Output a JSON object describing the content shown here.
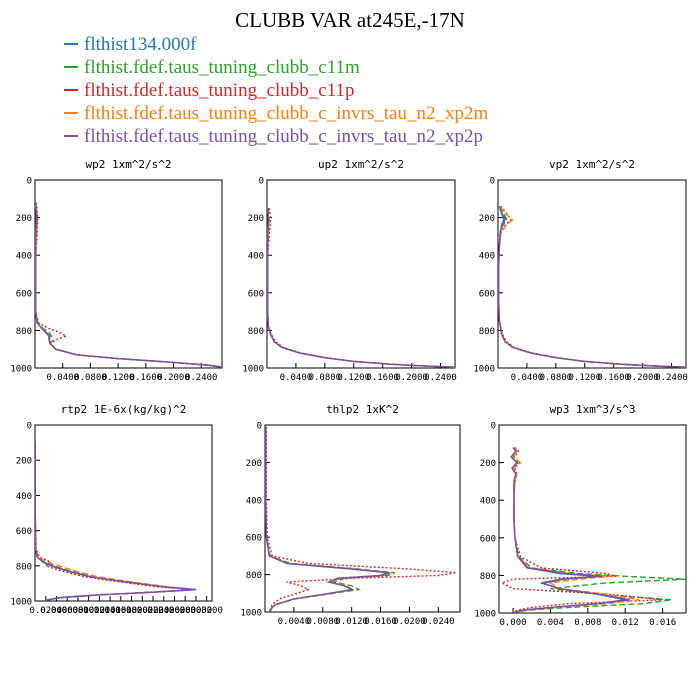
{
  "title": "CLUBB VAR at245E,-17N",
  "colors": [
    "#1f77b4",
    "#2ca02c",
    "#d62728",
    "#ff7f0e",
    "#7b4fa6"
  ],
  "legend": [
    "flthist134.000f",
    "flthist.fdef.taus_tuning_clubb_c11m",
    "flthist.fdef.taus_tuning_clubb_c11p",
    "flthist.fdef.taus_tuning_clubb_c_invrs_tau_n2_xp2m",
    "flthist.fdef.taus_tuning_clubb_c_invrs_tau_n2_xp2p"
  ],
  "chart_data": [
    {
      "type": "line",
      "title": "wp2  1xm^2/s^2",
      "xlim": [
        0,
        0.27
      ],
      "ylim": [
        1000,
        0
      ],
      "xticks": [
        "0.0400",
        "0.0800",
        "0.1200",
        "0.1600",
        "0.2000",
        "0.2400"
      ],
      "yticks": [
        "0",
        "200",
        "400",
        "600",
        "800",
        "1000"
      ],
      "y": [
        120,
        200,
        300,
        400,
        500,
        600,
        700,
        760,
        790,
        810,
        830,
        850,
        870,
        900,
        930,
        950,
        970,
        985,
        995
      ],
      "series": [
        {
          "name": "flthist134.000f",
          "values": [
            0.001,
            0.002,
            0.001,
            0.001,
            0.001,
            0.001,
            0.001,
            0.003,
            0.01,
            0.015,
            0.02,
            0.02,
            0.022,
            0.03,
            0.06,
            0.12,
            0.2,
            0.25,
            0.27
          ]
        },
        {
          "name": "flthist.fdef.taus_tuning_clubb_c11m",
          "values": [
            0.001,
            0.003,
            0.002,
            0.001,
            0.001,
            0.001,
            0.001,
            0.004,
            0.012,
            0.02,
            0.024,
            0.026,
            0.022,
            0.03,
            0.06,
            0.12,
            0.2,
            0.25,
            0.27
          ]
        },
        {
          "name": "flthist.fdef.taus_tuning_clubb_c11p",
          "values": [
            0.002,
            0.004,
            0.003,
            0.001,
            0.001,
            0.001,
            0.001,
            0.005,
            0.02,
            0.035,
            0.045,
            0.03,
            0.022,
            0.03,
            0.06,
            0.12,
            0.2,
            0.25,
            0.27
          ]
        },
        {
          "name": "flthist.fdef.taus_tuning_clubb_c_invrs_tau_n2_xp2m",
          "values": [
            0.001,
            0.002,
            0.001,
            0.001,
            0.001,
            0.001,
            0.001,
            0.003,
            0.011,
            0.017,
            0.022,
            0.022,
            0.022,
            0.03,
            0.06,
            0.12,
            0.2,
            0.25,
            0.27
          ]
        },
        {
          "name": "flthist.fdef.taus_tuning_clubb_c_invrs_tau_n2_xp2p",
          "values": [
            0.001,
            0.002,
            0.001,
            0.001,
            0.001,
            0.001,
            0.001,
            0.003,
            0.01,
            0.016,
            0.021,
            0.021,
            0.022,
            0.03,
            0.06,
            0.12,
            0.2,
            0.25,
            0.27
          ]
        }
      ]
    },
    {
      "type": "line",
      "title": "up2  1xm^2/s^2",
      "xlim": [
        0,
        0.26
      ],
      "ylim": [
        1000,
        0
      ],
      "xticks": [
        "0.0400",
        "0.0800",
        "0.1200",
        "0.1600",
        "0.2000",
        "0.2400"
      ],
      "yticks": [
        "0",
        "200",
        "400",
        "600",
        "800",
        "1000"
      ],
      "y": [
        150,
        200,
        300,
        400,
        500,
        600,
        700,
        780,
        820,
        860,
        890,
        920,
        945,
        965,
        980,
        990,
        996
      ],
      "series": [
        {
          "name": "flthist134.000f",
          "values": [
            0.001,
            0.002,
            0.001,
            0.001,
            0.001,
            0.001,
            0.001,
            0.002,
            0.005,
            0.01,
            0.02,
            0.045,
            0.08,
            0.12,
            0.17,
            0.22,
            0.26
          ]
        },
        {
          "name": "flthist.fdef.taus_tuning_clubb_c11m",
          "values": [
            0.002,
            0.003,
            0.002,
            0.001,
            0.001,
            0.001,
            0.001,
            0.002,
            0.005,
            0.01,
            0.02,
            0.045,
            0.08,
            0.12,
            0.17,
            0.22,
            0.26
          ]
        },
        {
          "name": "flthist.fdef.taus_tuning_clubb_c11p",
          "values": [
            0.003,
            0.005,
            0.003,
            0.001,
            0.001,
            0.001,
            0.001,
            0.002,
            0.006,
            0.012,
            0.022,
            0.047,
            0.082,
            0.12,
            0.17,
            0.22,
            0.26
          ]
        },
        {
          "name": "flthist.fdef.taus_tuning_clubb_c_invrs_tau_n2_xp2m",
          "values": [
            0.001,
            0.002,
            0.001,
            0.001,
            0.001,
            0.001,
            0.001,
            0.002,
            0.005,
            0.01,
            0.02,
            0.045,
            0.08,
            0.12,
            0.17,
            0.22,
            0.26
          ]
        },
        {
          "name": "flthist.fdef.taus_tuning_clubb_c_invrs_tau_n2_xp2p",
          "values": [
            0.001,
            0.002,
            0.001,
            0.001,
            0.001,
            0.001,
            0.001,
            0.002,
            0.005,
            0.01,
            0.02,
            0.045,
            0.08,
            0.12,
            0.17,
            0.22,
            0.26
          ]
        }
      ]
    },
    {
      "type": "line",
      "title": "vp2  1xm^2/s^2",
      "xlim": [
        0,
        0.26
      ],
      "ylim": [
        1000,
        0
      ],
      "xticks": [
        "0.0400",
        "0.0800",
        "0.1200",
        "0.1600",
        "0.2000",
        "0.2400"
      ],
      "yticks": [
        "0",
        "200",
        "400",
        "600",
        "800",
        "1000"
      ],
      "y": [
        140,
        180,
        210,
        240,
        280,
        350,
        450,
        550,
        650,
        750,
        820,
        860,
        890,
        920,
        945,
        965,
        980,
        990,
        996
      ],
      "series": [
        {
          "name": "flthist134.000f",
          "values": [
            0.002,
            0.005,
            0.008,
            0.005,
            0.003,
            0.002,
            0.001,
            0.001,
            0.001,
            0.002,
            0.005,
            0.01,
            0.02,
            0.045,
            0.08,
            0.12,
            0.17,
            0.22,
            0.26
          ]
        },
        {
          "name": "flthist.fdef.taus_tuning_clubb_c11m",
          "values": [
            0.003,
            0.008,
            0.012,
            0.007,
            0.003,
            0.002,
            0.001,
            0.001,
            0.001,
            0.002,
            0.005,
            0.01,
            0.02,
            0.045,
            0.08,
            0.12,
            0.17,
            0.22,
            0.26
          ]
        },
        {
          "name": "flthist.fdef.taus_tuning_clubb_c11p",
          "values": [
            0.004,
            0.012,
            0.018,
            0.01,
            0.004,
            0.002,
            0.001,
            0.001,
            0.001,
            0.002,
            0.006,
            0.012,
            0.022,
            0.047,
            0.082,
            0.12,
            0.17,
            0.22,
            0.26
          ]
        },
        {
          "name": "flthist.fdef.taus_tuning_clubb_c_invrs_tau_n2_xp2m",
          "values": [
            0.003,
            0.01,
            0.02,
            0.012,
            0.004,
            0.002,
            0.001,
            0.001,
            0.001,
            0.002,
            0.005,
            0.01,
            0.02,
            0.045,
            0.08,
            0.12,
            0.17,
            0.22,
            0.26
          ]
        },
        {
          "name": "flthist.fdef.taus_tuning_clubb_c_invrs_tau_n2_xp2p",
          "values": [
            0.002,
            0.006,
            0.01,
            0.006,
            0.003,
            0.002,
            0.001,
            0.001,
            0.001,
            0.002,
            0.005,
            0.01,
            0.02,
            0.045,
            0.08,
            0.12,
            0.17,
            0.22,
            0.26
          ]
        }
      ]
    },
    {
      "type": "line",
      "title": "rtp2  1E-6x(kg/kg)^2",
      "xlim": [
        0,
        0.33
      ],
      "ylim": [
        1000,
        0
      ],
      "xticks": [
        "0.0200",
        "0.0400",
        "0.0600",
        "0.0800",
        "0.1000",
        "0.1200",
        "0.1400",
        "0.1600",
        "0.1800",
        "0.2000",
        "0.2200",
        "0.2400",
        "0.2600",
        "0.2800",
        "0.3000",
        "0.3200"
      ],
      "yticks": [
        "0",
        "200",
        "400",
        "600",
        "800",
        "1000"
      ],
      "y": [
        100,
        300,
        500,
        700,
        750,
        780,
        800,
        830,
        860,
        880,
        900,
        920,
        935,
        950,
        965,
        980,
        995
      ],
      "series": [
        {
          "name": "flthist134.000f",
          "values": [
            0.0005,
            0.0005,
            0.0005,
            0.001,
            0.004,
            0.015,
            0.03,
            0.06,
            0.1,
            0.14,
            0.19,
            0.24,
            0.3,
            0.22,
            0.12,
            0.05,
            0.02
          ]
        },
        {
          "name": "flthist.fdef.taus_tuning_clubb_c11m",
          "values": [
            0.0005,
            0.0005,
            0.0005,
            0.001,
            0.005,
            0.018,
            0.035,
            0.065,
            0.105,
            0.145,
            0.195,
            0.245,
            0.3,
            0.22,
            0.12,
            0.05,
            0.02
          ]
        },
        {
          "name": "flthist.fdef.taus_tuning_clubb_c11p",
          "values": [
            0.0005,
            0.0005,
            0.0005,
            0.002,
            0.008,
            0.03,
            0.02,
            0.05,
            0.09,
            0.13,
            0.18,
            0.23,
            0.3,
            0.22,
            0.12,
            0.05,
            0.02
          ]
        },
        {
          "name": "flthist.fdef.taus_tuning_clubb_c_invrs_tau_n2_xp2m",
          "values": [
            0.0005,
            0.0005,
            0.0005,
            0.001,
            0.006,
            0.022,
            0.045,
            0.075,
            0.115,
            0.155,
            0.2,
            0.25,
            0.3,
            0.22,
            0.12,
            0.05,
            0.02
          ]
        },
        {
          "name": "flthist.fdef.taus_tuning_clubb_c_invrs_tau_n2_xp2p",
          "values": [
            0.0005,
            0.0005,
            0.0005,
            0.001,
            0.004,
            0.016,
            0.032,
            0.062,
            0.102,
            0.142,
            0.192,
            0.242,
            0.3,
            0.22,
            0.12,
            0.05,
            0.02
          ]
        }
      ]
    },
    {
      "type": "line",
      "title": "thlp2  1xK^2",
      "xlim": [
        0,
        0.027
      ],
      "ylim": [
        1000,
        0
      ],
      "xticks": [
        "0.0040",
        "0.0080",
        "0.0120",
        "0.0160",
        "0.0200",
        "0.0240"
      ],
      "yticks": [
        "0",
        "200",
        "400",
        "600",
        "800",
        "1000"
      ],
      "y": [
        10,
        200,
        400,
        600,
        700,
        740,
        770,
        790,
        805,
        820,
        840,
        860,
        880,
        900,
        930,
        960,
        975,
        990,
        1000
      ],
      "series": [
        {
          "name": "flthist134.000f",
          "values": [
            0.0001,
            0.0001,
            0.0001,
            0.0002,
            0.0006,
            0.003,
            0.012,
            0.017,
            0.016,
            0.01,
            0.009,
            0.011,
            0.012,
            0.009,
            0.004,
            0.0015,
            0.001,
            0.0008,
            0.0006
          ]
        },
        {
          "name": "flthist.fdef.taus_tuning_clubb_c11m",
          "values": [
            0.0001,
            0.0001,
            0.0001,
            0.0002,
            0.0007,
            0.0035,
            0.013,
            0.018,
            0.017,
            0.011,
            0.0095,
            0.012,
            0.013,
            0.0095,
            0.0042,
            0.0016,
            0.001,
            0.0008,
            0.0006
          ]
        },
        {
          "name": "flthist.fdef.taus_tuning_clubb_c11p",
          "values": [
            0.0002,
            0.0002,
            0.0002,
            0.0003,
            0.001,
            0.006,
            0.02,
            0.0265,
            0.024,
            0.012,
            0.003,
            0.005,
            0.006,
            0.0045,
            0.002,
            0.001,
            0.0008,
            0.0007,
            0.0006
          ]
        },
        {
          "name": "flthist.fdef.taus_tuning_clubb_c_invrs_tau_n2_xp2m",
          "values": [
            0.0001,
            0.0001,
            0.0001,
            0.0002,
            0.0006,
            0.0032,
            0.0125,
            0.0175,
            0.0165,
            0.0102,
            0.009,
            0.0112,
            0.0122,
            0.0091,
            0.0041,
            0.0015,
            0.001,
            0.0008,
            0.0006
          ]
        },
        {
          "name": "flthist.fdef.taus_tuning_clubb_c_invrs_tau_n2_xp2p",
          "values": [
            0.0001,
            0.0001,
            0.0001,
            0.0002,
            0.0006,
            0.0031,
            0.012,
            0.0172,
            0.0162,
            0.0101,
            0.0088,
            0.011,
            0.0121,
            0.009,
            0.004,
            0.0015,
            0.001,
            0.0008,
            0.0006
          ]
        }
      ]
    },
    {
      "type": "line",
      "title": "wp3  1xm^3/s^3",
      "xlim": [
        -0.0015,
        0.0185
      ],
      "ylim": [
        1000,
        0
      ],
      "xticks": [
        "0.000",
        "0.004",
        "0.008",
        "0.012",
        "0.016"
      ],
      "yticks": [
        "0",
        "200",
        "400",
        "600",
        "800",
        "1000"
      ],
      "y": [
        120,
        140,
        170,
        200,
        230,
        260,
        300,
        400,
        500,
        600,
        700,
        760,
        790,
        805,
        820,
        840,
        870,
        900,
        930,
        950,
        970,
        985,
        998
      ],
      "series": [
        {
          "name": "flthist134.000f",
          "values": [
            0.0,
            0.0003,
            -0.0002,
            0.0004,
            -0.0001,
            0.0003,
            0.0001,
            0.0001,
            0.0001,
            0.0002,
            0.0005,
            0.0015,
            0.005,
            0.009,
            0.005,
            0.003,
            0.005,
            0.009,
            0.012,
            0.009,
            0.004,
            0.001,
            0.0
          ]
        },
        {
          "name": "flthist.fdef.taus_tuning_clubb_c11m",
          "values": [
            0.0001,
            0.0004,
            -0.0001,
            0.0005,
            0.0,
            0.0003,
            0.0001,
            0.0001,
            0.0001,
            0.0002,
            0.0006,
            0.002,
            0.007,
            0.012,
            0.0185,
            0.01,
            0.004,
            0.009,
            0.017,
            0.014,
            0.006,
            0.0015,
            0.0
          ]
        },
        {
          "name": "flthist.fdef.taus_tuning_clubb_c11p",
          "values": [
            0.0002,
            0.0006,
            0.0001,
            0.0007,
            0.0002,
            0.0004,
            0.0002,
            0.0001,
            0.0001,
            0.0002,
            0.0008,
            0.003,
            0.01,
            0.011,
            0.0,
            -0.0012,
            0.0,
            0.01,
            0.016,
            0.006,
            0.002,
            0.0005,
            0.0
          ]
        },
        {
          "name": "flthist.fdef.taus_tuning_clubb_c_invrs_tau_n2_xp2m",
          "values": [
            0.0001,
            0.0005,
            0.0,
            0.0008,
            0.0001,
            0.0004,
            0.0002,
            0.0001,
            0.0001,
            0.0002,
            0.0005,
            0.0018,
            0.006,
            0.0105,
            0.007,
            0.004,
            0.005,
            0.01,
            0.0135,
            0.01,
            0.0045,
            0.0012,
            0.0
          ]
        },
        {
          "name": "flthist.fdef.taus_tuning_clubb_c_invrs_tau_n2_xp2p",
          "values": [
            0.0,
            0.0003,
            -0.0002,
            0.0004,
            -0.0001,
            0.0003,
            0.0001,
            0.0001,
            0.0001,
            0.0002,
            0.0005,
            0.0016,
            0.0055,
            0.0095,
            0.0055,
            0.0032,
            0.0048,
            0.0092,
            0.0125,
            0.0092,
            0.0041,
            0.001,
            0.0
          ]
        }
      ]
    }
  ]
}
